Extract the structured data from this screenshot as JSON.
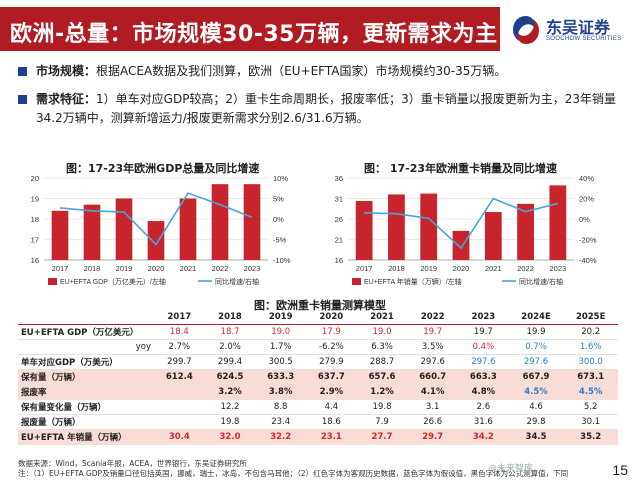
{
  "header": {
    "title": "欧洲-总量：市场规模30-35万辆，更新需求为主",
    "logo_cn": "东吴证券",
    "logo_en": "SOOCHOW SECURITIES"
  },
  "bullets": [
    {
      "label": "市场规模：",
      "text": "根据ACEA数据及我们测算，欧洲（EU+EFTA国家）市场规模约30-35万辆。"
    },
    {
      "label": "需求特征：",
      "text": "1）单车对应GDP较高；2）重卡生命周期长，报废率低；3）重卡销量以报废更新为主，23年销量34.2万辆中，测算新增运力/报废更新需求分别2.6/31.6万辆。"
    }
  ],
  "charts": {
    "left_title": "图：17-23年欧洲GDP总量及同比增速",
    "right_title": "图： 17-23年欧洲重卡销量及同比增速"
  },
  "chart_data": [
    {
      "type": "bar",
      "title": "图：17-23年欧洲GDP总量及同比增速",
      "categories": [
        "2017",
        "2018",
        "2019",
        "2020",
        "2021",
        "2022",
        "2023"
      ],
      "series": [
        {
          "name": "EU+EFTA GDP（万亿美元）/左轴",
          "type": "bar",
          "values": [
            18.4,
            18.7,
            19.0,
            17.9,
            19.0,
            19.7,
            19.7
          ]
        },
        {
          "name": "同比增速/右轴",
          "type": "line",
          "values": [
            2.7,
            2.0,
            1.7,
            -6.2,
            6.3,
            3.5,
            0.4
          ]
        }
      ],
      "ylim": [
        16,
        20
      ],
      "yticks": [
        "16",
        "17",
        "18",
        "19",
        "20"
      ],
      "y2lim": [
        -10,
        10
      ],
      "y2ticks": [
        "-10%",
        "-5%",
        "0%",
        "5%",
        "10%"
      ],
      "colors": {
        "bar": "#c8242b",
        "line": "#4aa3d8"
      }
    },
    {
      "type": "bar",
      "title": "图： 17-23年欧洲重卡销量及同比增速",
      "categories": [
        "2017",
        "2018",
        "2019",
        "2020",
        "2021",
        "2022",
        "2023"
      ],
      "series": [
        {
          "name": "EU+EFTA 年销量（万辆）/左轴",
          "type": "bar",
          "values": [
            30.4,
            32.0,
            32.2,
            23.1,
            27.7,
            29.7,
            34.2
          ]
        },
        {
          "name": "同比增速/右轴",
          "type": "line",
          "values": [
            6.0,
            5.2,
            0.6,
            -28.3,
            19.9,
            7.2,
            15.2
          ]
        }
      ],
      "ylim": [
        16,
        36
      ],
      "yticks": [
        "16",
        "21",
        "26",
        "31",
        "36"
      ],
      "y2lim": [
        -40,
        40
      ],
      "y2ticks": [
        "-40%",
        "-20%",
        "0%",
        "20%",
        "40%"
      ],
      "colors": {
        "bar": "#c8242b",
        "line": "#4aa3d8"
      }
    }
  ],
  "table": {
    "title": "图：欧洲重卡销量测算模型",
    "columns": [
      "",
      "2017",
      "2018",
      "2019",
      "2020",
      "2021",
      "2022",
      "2023",
      "2024E",
      "2025E"
    ],
    "rows": [
      {
        "label": "EU+EFTA GDP（万亿美元）",
        "align": "left",
        "hl": false,
        "cells": [
          {
            "v": "18.4",
            "c": "red"
          },
          {
            "v": "18.7",
            "c": "red"
          },
          {
            "v": "19.0",
            "c": "red"
          },
          {
            "v": "17.9",
            "c": "red"
          },
          {
            "v": "19.0",
            "c": "red"
          },
          {
            "v": "19.7",
            "c": "red"
          },
          {
            "v": "19.7",
            "c": "blk"
          },
          {
            "v": "19.9",
            "c": "blk"
          },
          {
            "v": "20.2",
            "c": "blk"
          }
        ]
      },
      {
        "label": "yoy",
        "align": "right",
        "hl": false,
        "cells": [
          {
            "v": "2.7%",
            "c": "blk"
          },
          {
            "v": "2.0%",
            "c": "blk"
          },
          {
            "v": "1.7%",
            "c": "blk"
          },
          {
            "v": "-6.2%",
            "c": "blk"
          },
          {
            "v": "6.3%",
            "c": "blk"
          },
          {
            "v": "3.5%",
            "c": "blk"
          },
          {
            "v": "0.4%",
            "c": "red"
          },
          {
            "v": "0.7%",
            "c": "blue"
          },
          {
            "v": "1.6%",
            "c": "blue"
          }
        ]
      },
      {
        "label": "单车对应GDP（万美元）",
        "align": "left",
        "hl": false,
        "cells": [
          {
            "v": "299.7",
            "c": "blk"
          },
          {
            "v": "299.4",
            "c": "blk"
          },
          {
            "v": "300.5",
            "c": "blk"
          },
          {
            "v": "279.9",
            "c": "blk"
          },
          {
            "v": "288.7",
            "c": "blk"
          },
          {
            "v": "297.6",
            "c": "blk"
          },
          {
            "v": "297.6",
            "c": "blue"
          },
          {
            "v": "297.6",
            "c": "blue"
          },
          {
            "v": "300.0",
            "c": "blue"
          }
        ]
      },
      {
        "label": "保有量（万辆）",
        "align": "left",
        "hl": true,
        "bold": true,
        "cells": [
          {
            "v": "612.4",
            "c": "blk"
          },
          {
            "v": "624.5",
            "c": "blk"
          },
          {
            "v": "633.3",
            "c": "blk"
          },
          {
            "v": "637.7",
            "c": "blk"
          },
          {
            "v": "657.6",
            "c": "blk"
          },
          {
            "v": "660.7",
            "c": "blk"
          },
          {
            "v": "663.3",
            "c": "blk"
          },
          {
            "v": "667.9",
            "c": "blk"
          },
          {
            "v": "673.1",
            "c": "blk"
          }
        ]
      },
      {
        "label": "报废率",
        "align": "left",
        "hl": true,
        "bold": true,
        "cells": [
          {
            "v": "",
            "c": "blk"
          },
          {
            "v": "3.2%",
            "c": "blk"
          },
          {
            "v": "3.8%",
            "c": "blk"
          },
          {
            "v": "2.9%",
            "c": "blk"
          },
          {
            "v": "1.2%",
            "c": "blk"
          },
          {
            "v": "4.1%",
            "c": "blk"
          },
          {
            "v": "4.8%",
            "c": "blk"
          },
          {
            "v": "4.5%",
            "c": "blue"
          },
          {
            "v": "4.5%",
            "c": "blue"
          }
        ]
      },
      {
        "label": "保有量变化量（万辆）",
        "align": "left",
        "hl": false,
        "cells": [
          {
            "v": "",
            "c": "blk"
          },
          {
            "v": "12.2",
            "c": "blk"
          },
          {
            "v": "8.8",
            "c": "blk"
          },
          {
            "v": "4.4",
            "c": "blk"
          },
          {
            "v": "19.8",
            "c": "blk"
          },
          {
            "v": "3.1",
            "c": "blk"
          },
          {
            "v": "2.6",
            "c": "blk"
          },
          {
            "v": "4.6",
            "c": "blk"
          },
          {
            "v": "5.2",
            "c": "blk"
          }
        ]
      },
      {
        "label": "报废量（万辆）",
        "align": "left",
        "hl": false,
        "cells": [
          {
            "v": "",
            "c": "blk"
          },
          {
            "v": "19.8",
            "c": "blk"
          },
          {
            "v": "23.4",
            "c": "blk"
          },
          {
            "v": "18.6",
            "c": "blk"
          },
          {
            "v": "7.9",
            "c": "blk"
          },
          {
            "v": "26.6",
            "c": "blk"
          },
          {
            "v": "31.6",
            "c": "blk"
          },
          {
            "v": "29.8",
            "c": "blk"
          },
          {
            "v": "30.1",
            "c": "blk"
          }
        ]
      },
      {
        "label": "EU+EFTA 年销量（万辆）",
        "align": "left",
        "hl": true,
        "last": true,
        "bold": true,
        "cells": [
          {
            "v": "30.4",
            "c": "red"
          },
          {
            "v": "32.0",
            "c": "red"
          },
          {
            "v": "32.2",
            "c": "red"
          },
          {
            "v": "23.1",
            "c": "red"
          },
          {
            "v": "27.7",
            "c": "red"
          },
          {
            "v": "29.7",
            "c": "red"
          },
          {
            "v": "34.2",
            "c": "red"
          },
          {
            "v": "34.5",
            "c": "blk"
          },
          {
            "v": "35.2",
            "c": "blk"
          }
        ]
      }
    ]
  },
  "footer": {
    "source": "数据来源：Wind，Scania年报，ACEA，世界银行，东吴证券研究所",
    "note": "注：（1）EU+EFTA GDP及销量口径包括英国，挪威，瑞士，冰岛，不包含马耳他；（2）红色字体为客观历史数据，蓝色字体为假设值，黑色字体为公式测算值，下同",
    "watermark": "@未来智库",
    "page": "15"
  }
}
